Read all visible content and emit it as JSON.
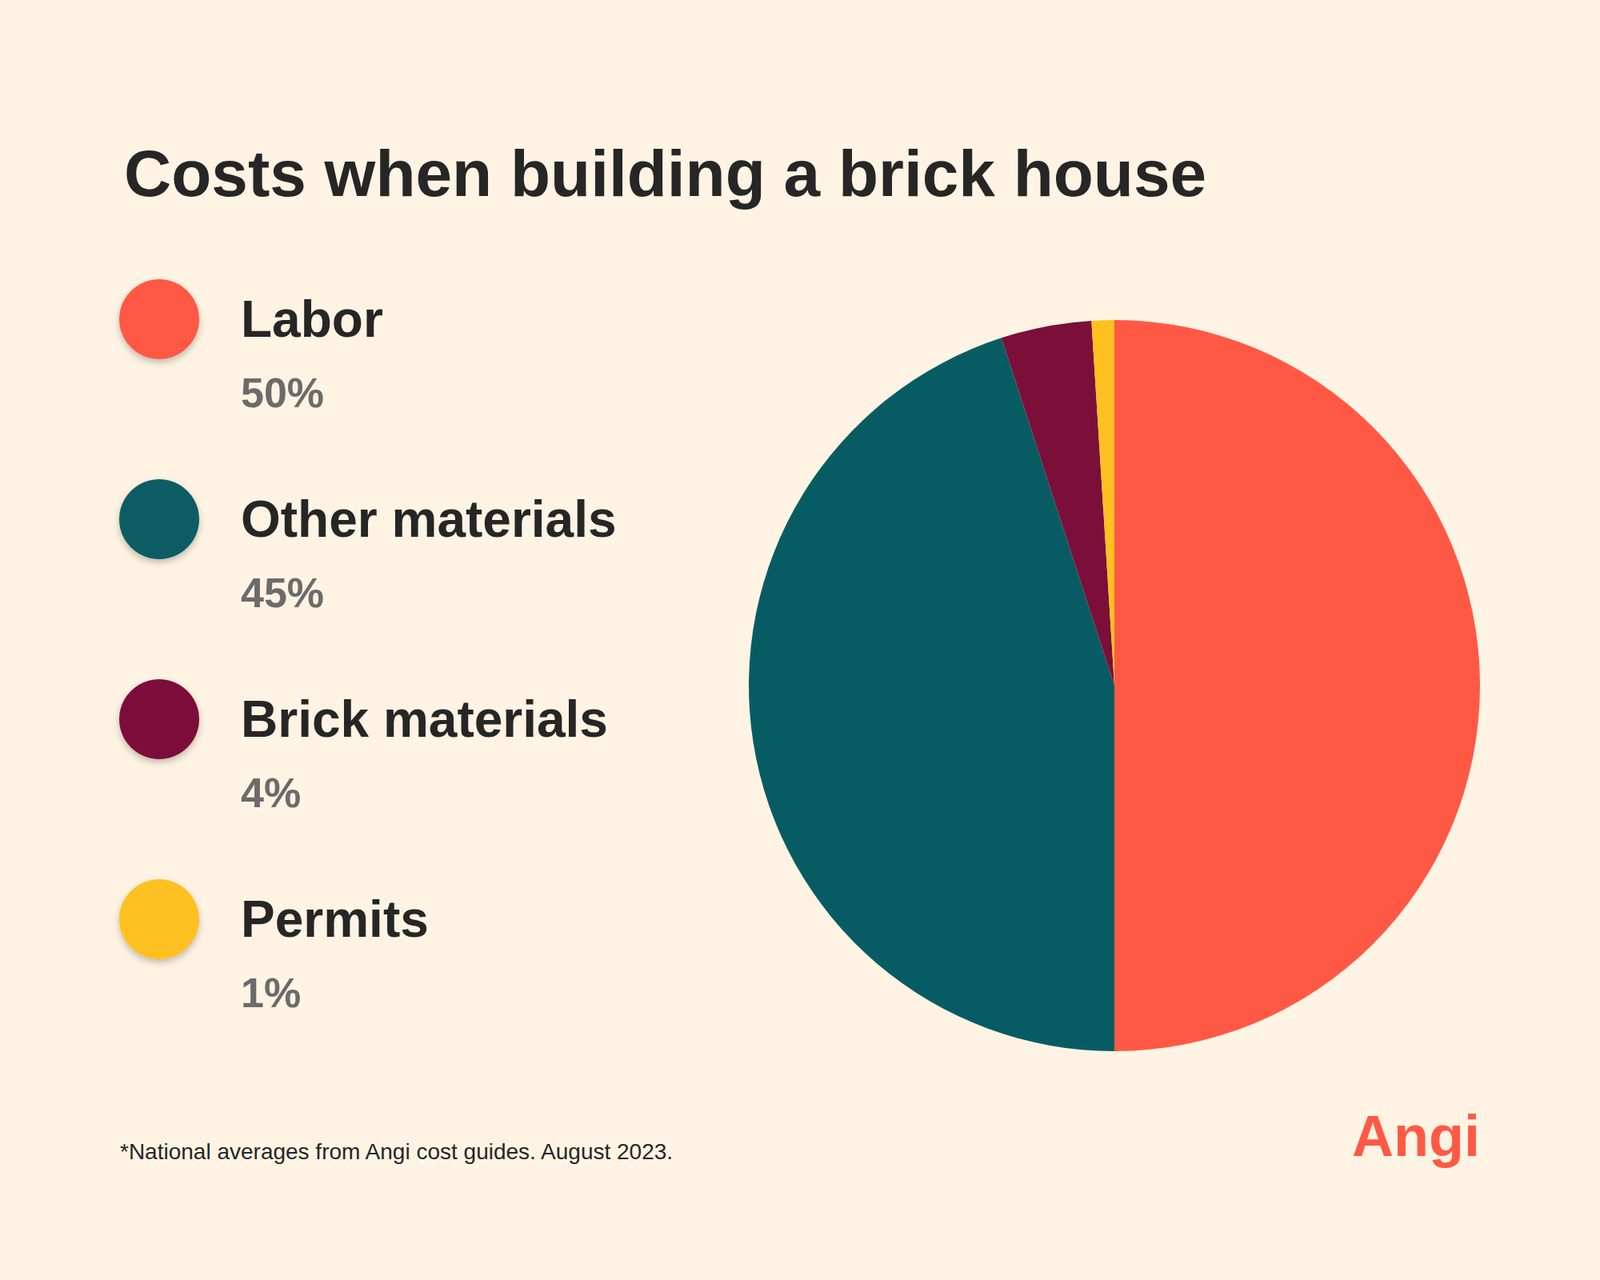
{
  "chart_data": {
    "type": "pie",
    "title": "Costs when building a brick house",
    "categories": [
      "Labor",
      "Other materials",
      "Brick materials",
      "Permits"
    ],
    "values": [
      50,
      45,
      4,
      1
    ],
    "value_labels": [
      "50%",
      "45%",
      "4%",
      "1%"
    ],
    "colors": [
      "#ff5945",
      "#075c63",
      "#7b0f3a",
      "#ffc020"
    ],
    "legend": "left",
    "annotations": [
      "*National averages from Angi cost guides. August 2023.",
      "Angi"
    ]
  }
}
